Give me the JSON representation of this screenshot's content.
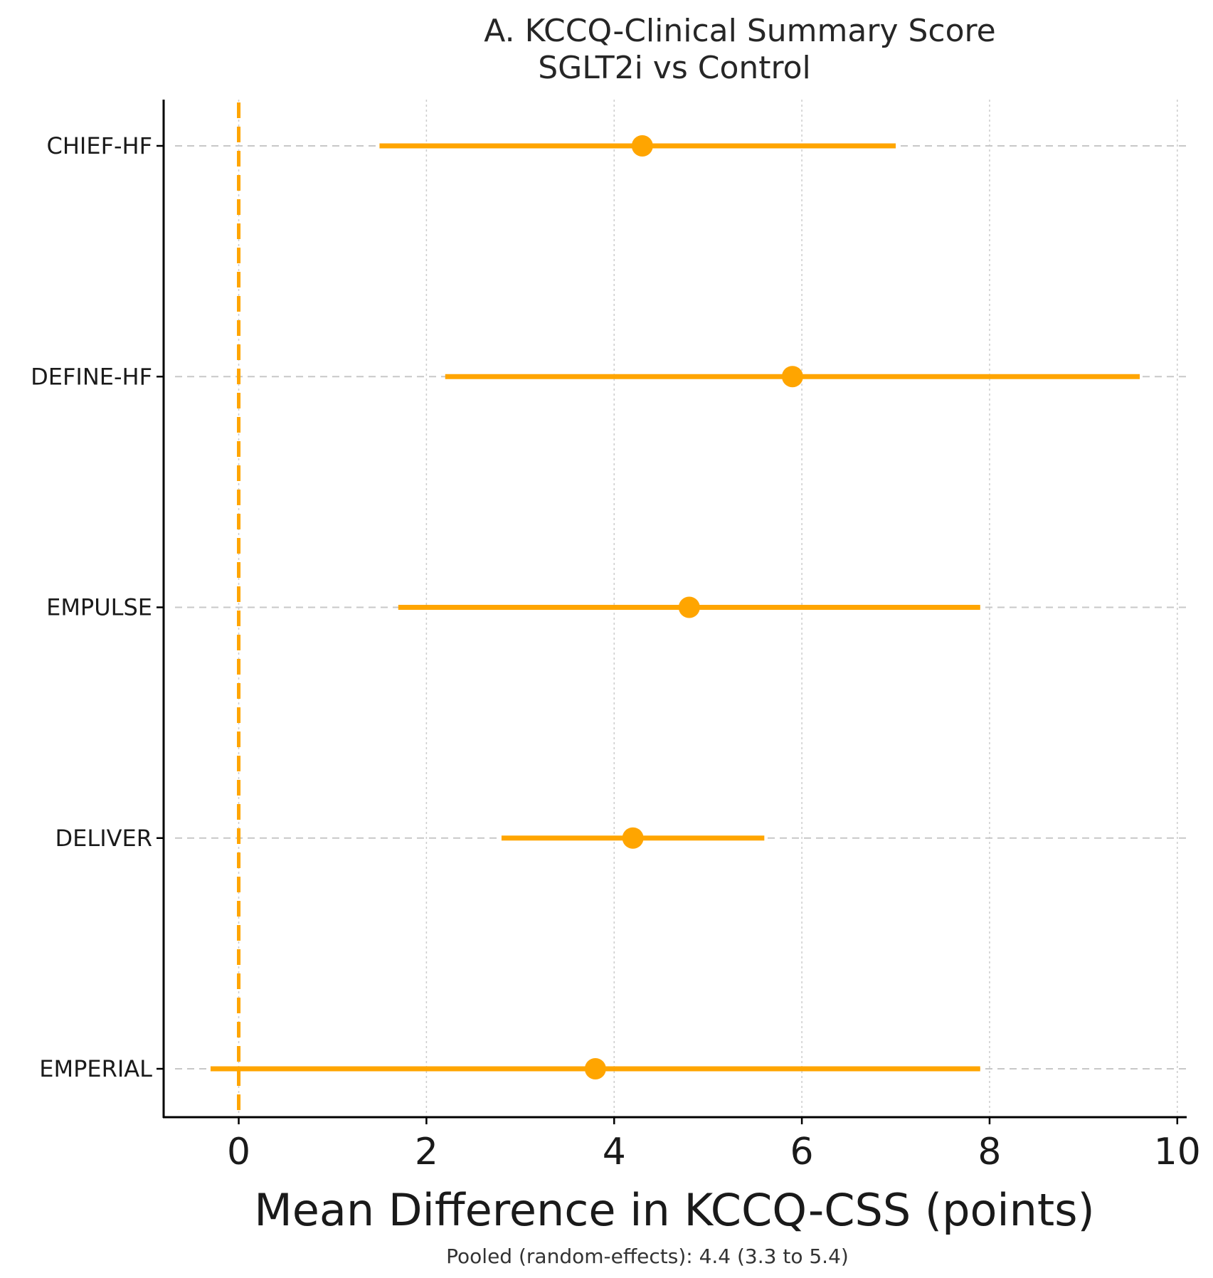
{
  "chart_data": {
    "type": "scatter",
    "title_line1": "A. KCCQ-Clinical Summary Score",
    "title_line2": "SGLT2i vs Control",
    "xlabel": "Mean Difference in KCCQ-CSS (points)",
    "footnote": "Pooled (random-effects): 4.4 (3.3 to 5.4)",
    "xlim": [
      -0.8,
      10.1
    ],
    "xticks": [
      0,
      2,
      4,
      6,
      8,
      10
    ],
    "reference_line_x": 0,
    "grid": true,
    "color": "#FFA500",
    "studies": [
      {
        "name": "CHIEF-HF",
        "estimate": 4.3,
        "lower": 1.5,
        "upper": 7.0
      },
      {
        "name": "DEFINE-HF",
        "estimate": 5.9,
        "lower": 2.2,
        "upper": 9.6
      },
      {
        "name": "EMPULSE",
        "estimate": 4.8,
        "lower": 1.7,
        "upper": 7.9
      },
      {
        "name": "DELIVER",
        "estimate": 4.2,
        "lower": 2.8,
        "upper": 5.6
      },
      {
        "name": "EMPERIAL",
        "estimate": 3.8,
        "lower": -0.3,
        "upper": 7.9
      }
    ]
  }
}
